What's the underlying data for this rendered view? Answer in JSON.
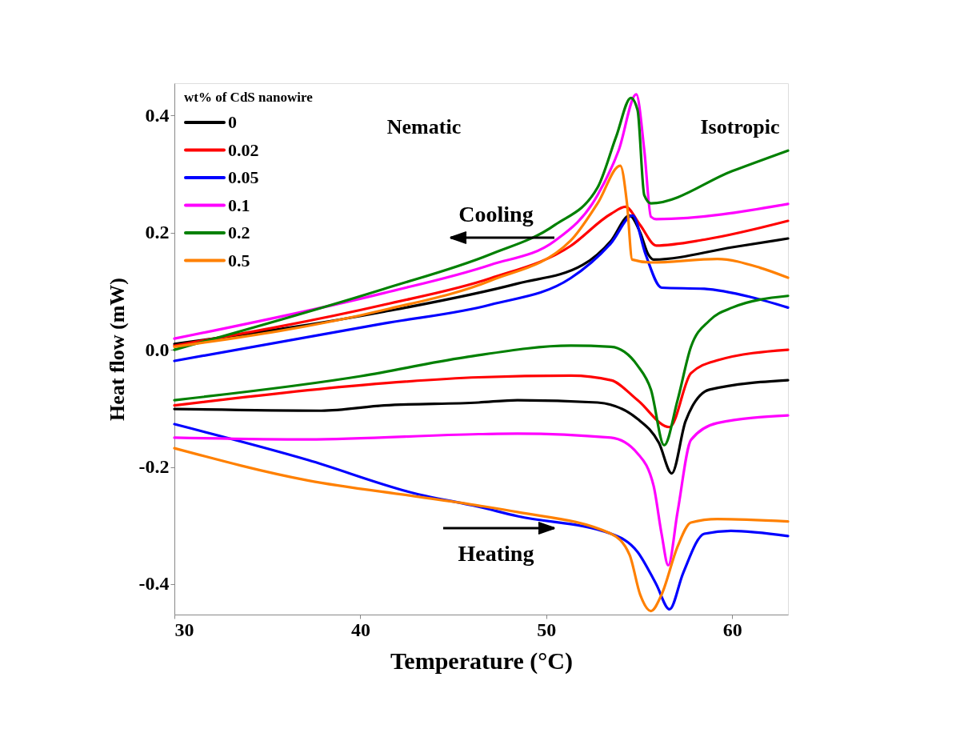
{
  "chart_data": {
    "type": "line",
    "xlabel": "Temperature (°C)",
    "ylabel": "Heat flow (mW)",
    "legend_title": "wt% of CdS nanowire",
    "legend": "top left",
    "grid": false,
    "marker": "none",
    "line_style": "solid",
    "xlim": [
      30,
      63
    ],
    "xticks": [
      30,
      40,
      50,
      60
    ],
    "ylim": [
      -0.452,
      0.455
    ],
    "yticks": [
      -0.4,
      -0.2,
      {
        "value": 0,
        "label": "0.0"
      },
      0.2,
      0.4
    ],
    "annotations": [
      "Nematic",
      "Isotropic",
      "Cooling",
      "Heating"
    ],
    "series": [
      {
        "name": "0",
        "color": "#000000",
        "x": [
          30,
          41.28,
          48.45,
          51.97,
          53.48,
          54.48,
          55.05,
          55.48,
          55.77,
          60,
          63
        ],
        "values": [
          0.01,
          0.065,
          0.113,
          0.145,
          0.186,
          0.229,
          0.2,
          0.163,
          0.154,
          0.175,
          0.19
        ]
      },
      {
        "name": "0.02",
        "color": "#ff0000",
        "x": [
          30,
          41.28,
          47.0,
          51.3,
          53.48,
          54.26,
          55.05,
          55.91,
          58.5,
          63
        ],
        "values": [
          0.007,
          0.077,
          0.122,
          0.177,
          0.232,
          0.244,
          0.213,
          0.178,
          0.188,
          0.22
        ]
      },
      {
        "name": "0.05",
        "color": "#0000ff",
        "x": [
          30,
          41.28,
          47.0,
          51.3,
          53.48,
          54.65,
          55.34,
          56.2,
          58.5,
          61,
          63
        ],
        "values": [
          -0.019,
          0.045,
          0.077,
          0.122,
          0.182,
          0.229,
          0.163,
          0.106,
          0.104,
          0.09,
          0.072
        ]
      },
      {
        "name": "0.1",
        "color": "#ff00ff",
        "x": [
          30,
          41.28,
          47.0,
          50.46,
          52.76,
          53.9,
          54.84,
          55.27,
          55.63,
          55.91,
          63
        ],
        "values": [
          0.019,
          0.097,
          0.145,
          0.186,
          0.264,
          0.341,
          0.436,
          0.341,
          0.227,
          0.223,
          0.249
        ]
      },
      {
        "name": "0.2",
        "color": "#008000",
        "x": [
          30,
          41.28,
          47.0,
          50.46,
          52.76,
          53.76,
          54.55,
          54.91,
          55.27,
          55.63,
          60,
          63
        ],
        "values": [
          0.0,
          0.104,
          0.163,
          0.213,
          0.277,
          0.364,
          0.43,
          0.409,
          0.264,
          0.25,
          0.305,
          0.34
        ]
      },
      {
        "name": "0.5",
        "color": "#ff8000",
        "x": [
          30,
          41.28,
          47.0,
          51.3,
          52.76,
          53.98,
          54.34,
          54.62,
          55.63,
          59.2,
          61.5,
          63
        ],
        "values": [
          0.005,
          0.068,
          0.118,
          0.186,
          0.25,
          0.314,
          0.25,
          0.154,
          0.149,
          0.155,
          0.14,
          0.123
        ]
      },
      {
        "color": "#000000",
        "x": [
          30,
          37.9,
          41.28,
          46.36,
          48.45,
          52.76,
          54.91,
          56.06,
          56.75,
          57.49,
          58.78,
          63
        ],
        "values": [
          -0.101,
          -0.104,
          -0.095,
          -0.09,
          -0.086,
          -0.09,
          -0.118,
          -0.159,
          -0.211,
          -0.122,
          -0.068,
          -0.052
        ]
      },
      {
        "color": "#ff0000",
        "x": [
          30,
          41.28,
          46.36,
          51.32,
          53.48,
          54.91,
          56.63,
          57.78,
          59.2,
          63
        ],
        "values": [
          -0.095,
          -0.057,
          -0.047,
          -0.044,
          -0.052,
          -0.086,
          -0.132,
          -0.04,
          -0.018,
          0.0
        ]
      },
      {
        "color": "#0000ff",
        "x": [
          30,
          37.17,
          42.91,
          46.36,
          48.45,
          53.48,
          54.91,
          55.91,
          56.63,
          57.35,
          58.5,
          59.93,
          63
        ],
        "values": [
          -0.127,
          -0.188,
          -0.245,
          -0.268,
          -0.284,
          -0.314,
          -0.345,
          -0.4,
          -0.443,
          -0.382,
          -0.314,
          -0.309,
          -0.318
        ]
      },
      {
        "color": "#ff00ff",
        "x": [
          30,
          37.17,
          46.36,
          48.45,
          53.48,
          54.91,
          55.77,
          56.2,
          56.56,
          57.06,
          57.78,
          59.2,
          63
        ],
        "values": [
          -0.15,
          -0.153,
          -0.144,
          -0.143,
          -0.15,
          -0.177,
          -0.232,
          -0.314,
          -0.368,
          -0.277,
          -0.154,
          -0.125,
          -0.112
        ]
      },
      {
        "color": "#008000",
        "x": [
          30,
          40.04,
          45.6,
          51.32,
          53.48,
          54.91,
          55.63,
          56.34,
          57.06,
          57.78,
          58.78,
          60,
          63
        ],
        "values": [
          -0.086,
          -0.045,
          -0.013,
          0.007,
          0.005,
          -0.027,
          -0.068,
          -0.163,
          -0.086,
          0.005,
          0.05,
          0.072,
          0.092
        ]
      },
      {
        "color": "#ff8000",
        "x": [
          30,
          37.17,
          42.91,
          46.36,
          48.45,
          53.48,
          54.48,
          55.05,
          55.63,
          56.2,
          57.06,
          57.78,
          59.2,
          63
        ],
        "values": [
          -0.168,
          -0.223,
          -0.25,
          -0.266,
          -0.277,
          -0.314,
          -0.35,
          -0.418,
          -0.446,
          -0.418,
          -0.336,
          -0.295,
          -0.289,
          -0.293
        ]
      }
    ]
  }
}
